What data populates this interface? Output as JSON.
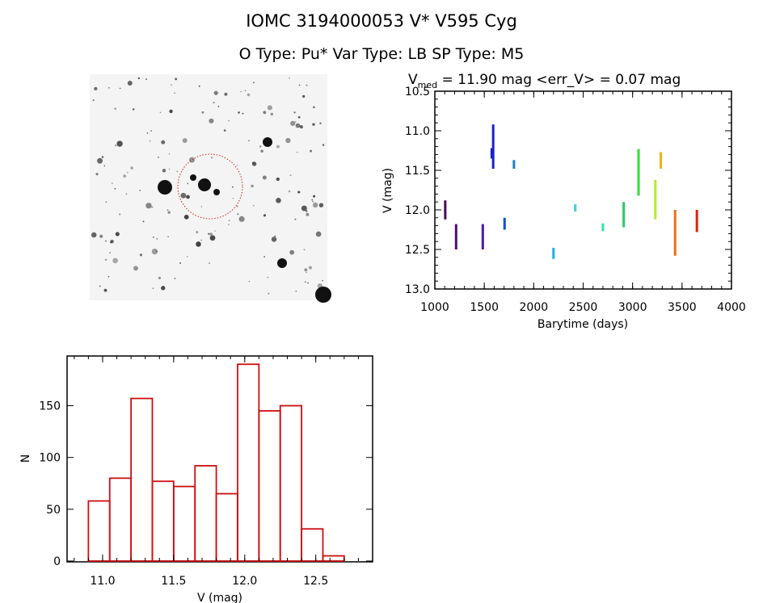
{
  "header": {
    "title_line1": "IOMC 3194000053    V* V595 Cyg",
    "title_line2": "O Type: Pu*   Var Type: LB   SP Type: M5"
  },
  "finder_image": {
    "description_icon": "star-field-image",
    "circle_color": "#cc2020"
  },
  "chart_data": [
    {
      "type": "scatter",
      "title_prefix": "V",
      "title_sub": "med",
      "title_rest": " = 11.90 mag <err_V> = 0.07 mag",
      "xlabel": "Barytime (days)",
      "ylabel": "V (mag)",
      "xlim": [
        1000,
        4000
      ],
      "ylim": [
        13.0,
        10.5
      ],
      "y_inverted": true,
      "xticks": [
        "1000",
        "1500",
        "2000",
        "2500",
        "3000",
        "3500",
        "4000"
      ],
      "yticks": [
        "10.5",
        "11.0",
        "11.5",
        "12.0",
        "12.5",
        "13.0"
      ],
      "segments": [
        {
          "x": 1105,
          "ymin": 11.88,
          "ymax": 12.12,
          "color": "#4a0a55"
        },
        {
          "x": 1215,
          "ymin": 12.18,
          "ymax": 12.5,
          "color": "#4a1070"
        },
        {
          "x": 1485,
          "ymin": 12.18,
          "ymax": 12.5,
          "color": "#5018a0"
        },
        {
          "x": 1575,
          "ymin": 11.22,
          "ymax": 11.35,
          "color": "#1a20d0"
        },
        {
          "x": 1590,
          "ymin": 10.92,
          "ymax": 11.48,
          "color": "#1a20d0"
        },
        {
          "x": 1705,
          "ymin": 12.1,
          "ymax": 12.25,
          "color": "#1050d0"
        },
        {
          "x": 1800,
          "ymin": 11.37,
          "ymax": 11.48,
          "color": "#2080c0"
        },
        {
          "x": 2200,
          "ymin": 12.48,
          "ymax": 12.62,
          "color": "#20b0e0"
        },
        {
          "x": 2420,
          "ymin": 11.93,
          "ymax": 12.02,
          "color": "#30d0e8"
        },
        {
          "x": 2700,
          "ymin": 12.17,
          "ymax": 12.27,
          "color": "#30e0b0"
        },
        {
          "x": 2910,
          "ymin": 11.9,
          "ymax": 12.22,
          "color": "#20d060"
        },
        {
          "x": 3060,
          "ymin": 11.23,
          "ymax": 11.82,
          "color": "#30e030"
        },
        {
          "x": 3230,
          "ymin": 11.62,
          "ymax": 12.12,
          "color": "#b0f020"
        },
        {
          "x": 3285,
          "ymin": 11.27,
          "ymax": 11.48,
          "color": "#f0b010"
        },
        {
          "x": 3430,
          "ymin": 12.0,
          "ymax": 12.58,
          "color": "#f07010"
        },
        {
          "x": 3650,
          "ymin": 12.0,
          "ymax": 12.28,
          "color": "#e02010"
        }
      ]
    },
    {
      "type": "bar",
      "histogram": true,
      "xlabel": "V (mag)",
      "ylabel": "N",
      "xlim": [
        10.75,
        12.9
      ],
      "ylim": [
        0,
        198
      ],
      "xticks": [
        "11.0",
        "11.5",
        "12.0",
        "12.5"
      ],
      "yticks": [
        "0",
        "50",
        "100",
        "150"
      ],
      "bin_edges": [
        10.9,
        11.05,
        11.2,
        11.35,
        11.5,
        11.65,
        11.8,
        11.95,
        12.1,
        12.25,
        12.4,
        12.55,
        12.7
      ],
      "values": [
        58,
        80,
        157,
        77,
        72,
        92,
        65,
        190,
        145,
        150,
        31,
        5
      ],
      "color": "#cc1010"
    }
  ]
}
